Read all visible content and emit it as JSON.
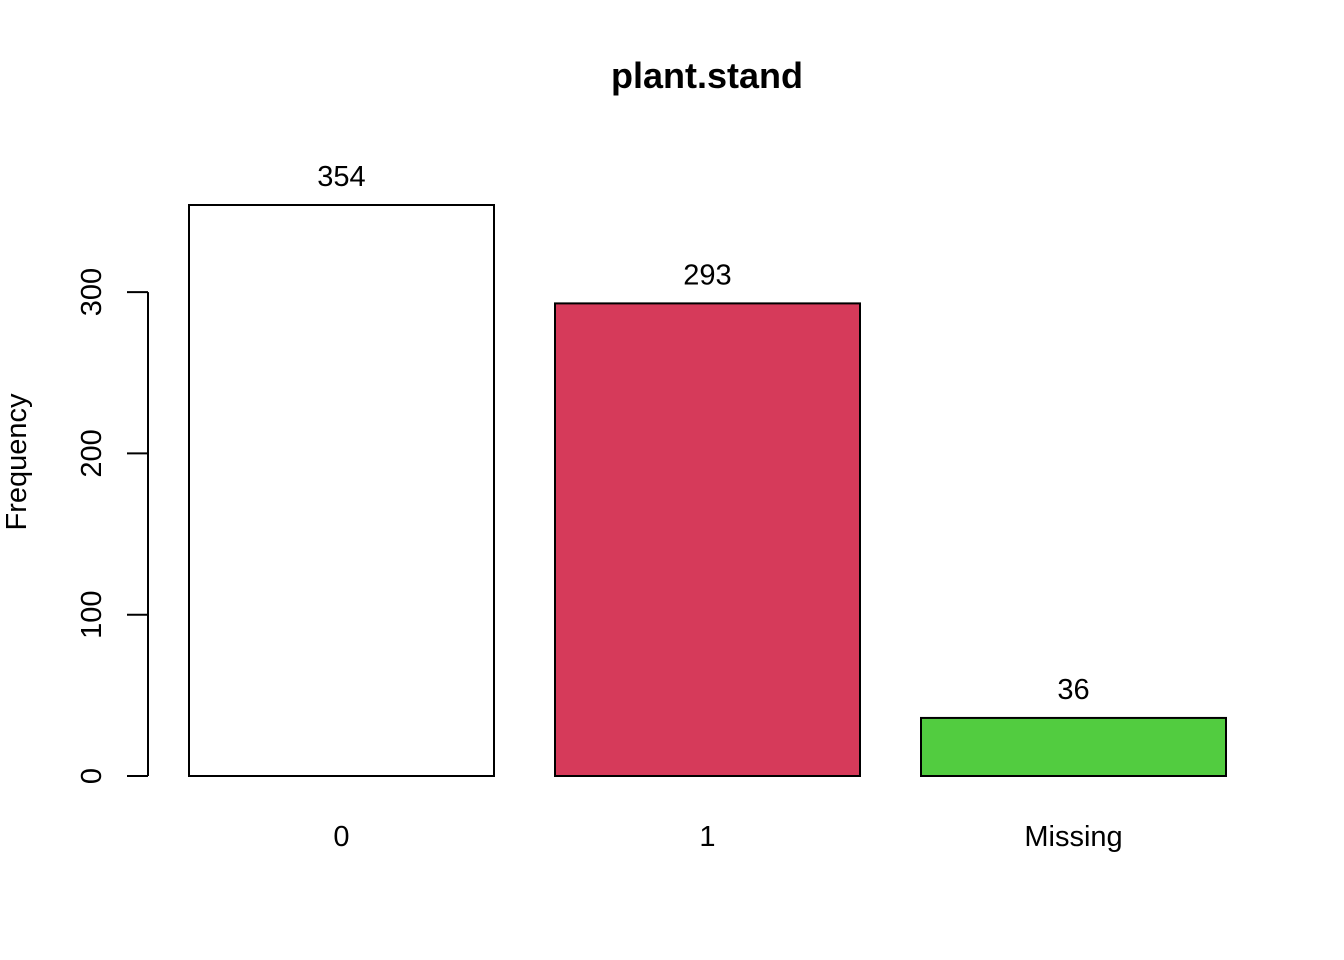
{
  "chart_data": {
    "type": "bar",
    "title": "plant.stand",
    "xlabel": "",
    "ylabel": "Frequency",
    "categories": [
      "0",
      "1",
      "Missing"
    ],
    "values": [
      354,
      293,
      36
    ],
    "bar_colors": [
      "#ffffff",
      "#d63a5a",
      "#52cc40"
    ],
    "value_labels": [
      "354",
      "293",
      "36"
    ],
    "yticks": [
      0,
      100,
      200,
      300
    ],
    "ytick_labels": [
      "0",
      "100",
      "200",
      "300"
    ],
    "ylim": [
      0,
      354
    ],
    "grid": false,
    "legend": "none"
  }
}
